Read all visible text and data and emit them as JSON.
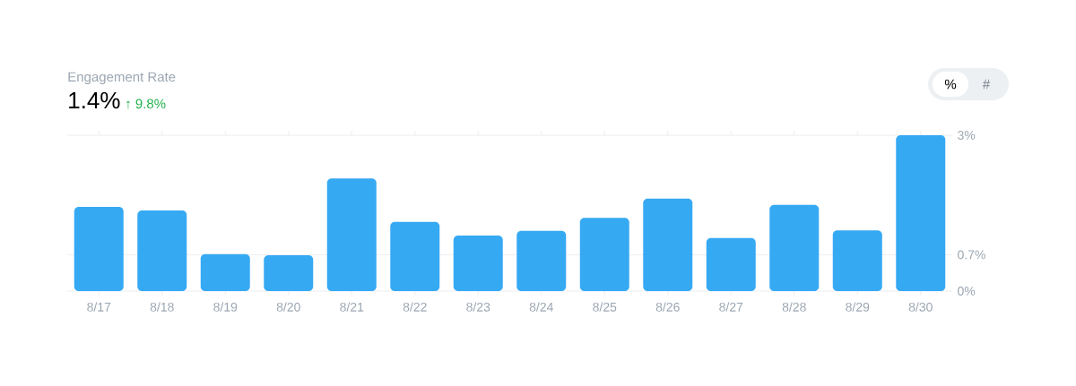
{
  "chart_data": {
    "type": "bar",
    "title": "Engagement Rate",
    "subtitle": "1.4%",
    "annotations": [
      "↑ 9.8%",
      "%",
      "#"
    ],
    "categories": [
      "8/17",
      "8/18",
      "8/19",
      "8/20",
      "8/21",
      "8/22",
      "8/23",
      "8/24",
      "8/25",
      "8/26",
      "8/27",
      "8/28",
      "8/29",
      "8/30"
    ],
    "values": [
      1.62,
      1.55,
      0.71,
      0.69,
      2.17,
      1.33,
      1.07,
      1.16,
      1.41,
      1.78,
      1.02,
      1.66,
      1.17,
      3.0
    ],
    "color": "#36a9f3",
    "ylim": [
      0,
      3
    ],
    "yticks": [
      {
        "value": 0,
        "label": "0%"
      },
      {
        "value": 0.7,
        "label": "0.7%"
      },
      {
        "value": 3,
        "label": "3%"
      }
    ],
    "grid": "y"
  }
}
